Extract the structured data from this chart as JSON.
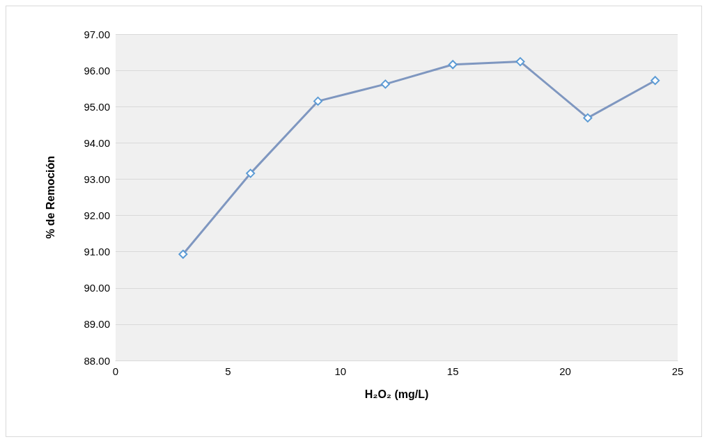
{
  "chart_data": {
    "type": "line",
    "xlabel": "H₂O₂ (mg/L)",
    "ylabel": "% de Remoción",
    "x": [
      3,
      6,
      9,
      12,
      15,
      18,
      21,
      24
    ],
    "series": [
      {
        "color": "#7f97c0",
        "values": [
          90.93,
          93.16,
          95.15,
          95.62,
          96.16,
          96.24,
          94.69,
          95.72
        ]
      }
    ],
    "xlim": [
      0,
      25
    ],
    "xticks": [
      0,
      5,
      10,
      15,
      20,
      25
    ],
    "ylim": [
      88,
      97
    ],
    "yticks": [
      {
        "value": 88,
        "label": "88.00"
      },
      {
        "value": 89,
        "label": "89.00"
      },
      {
        "value": 90,
        "label": "90.00"
      },
      {
        "value": 91,
        "label": "91.00"
      },
      {
        "value": 92,
        "label": "92.00"
      },
      {
        "value": 93,
        "label": "93.00"
      },
      {
        "value": 94,
        "label": "94.00"
      },
      {
        "value": 95,
        "label": "95.00"
      },
      {
        "value": 96,
        "label": "96.00"
      },
      {
        "value": 97,
        "label": "97.00"
      }
    ],
    "grid": "y",
    "marker": "diamond",
    "line_style": "solid"
  }
}
